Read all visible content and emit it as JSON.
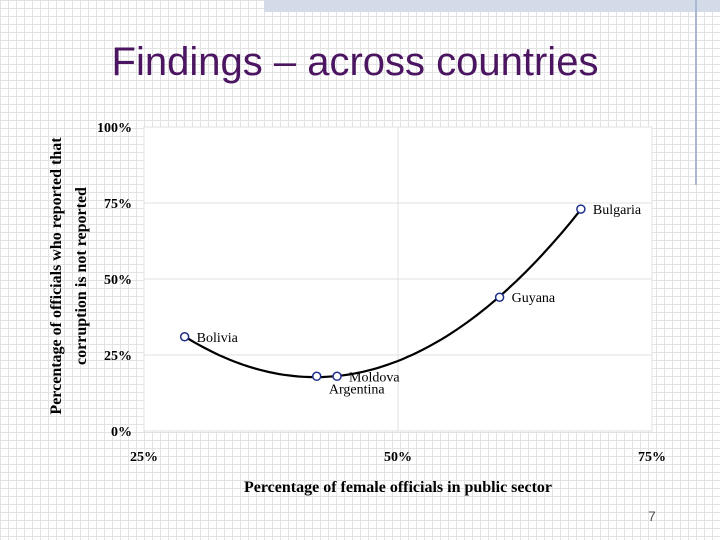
{
  "slide": {
    "title": "Findings – across countries",
    "page_number": "7"
  },
  "chart_data": {
    "type": "scatter",
    "xlabel": "Percentage of female officials in public sector",
    "ylabel_lines": [
      "Percentage of officials who reported that",
      "corruption is not reported"
    ],
    "xlim": [
      25,
      75
    ],
    "ylim": [
      0,
      100
    ],
    "x_ticks": [
      {
        "value": 25,
        "label": "25%"
      },
      {
        "value": 50,
        "label": "50%"
      },
      {
        "value": 75,
        "label": "75%"
      }
    ],
    "y_ticks": [
      {
        "value": 0,
        "label": "0%"
      },
      {
        "value": 25,
        "label": "25%"
      },
      {
        "value": 50,
        "label": "50%"
      },
      {
        "value": 75,
        "label": "75%"
      },
      {
        "value": 100,
        "label": "100%"
      }
    ],
    "points": [
      {
        "label": "Bolivia",
        "x": 29,
        "y": 31
      },
      {
        "label": "Argentina",
        "x": 42,
        "y": 18
      },
      {
        "label": "Moldova",
        "x": 44,
        "y": 18
      },
      {
        "label": "Guyana",
        "x": 60,
        "y": 44
      },
      {
        "label": "Bulgaria",
        "x": 68,
        "y": 73
      }
    ],
    "trend_line": {
      "type": "polynomial",
      "degree": 2
    },
    "grid": true,
    "legend": "none"
  }
}
